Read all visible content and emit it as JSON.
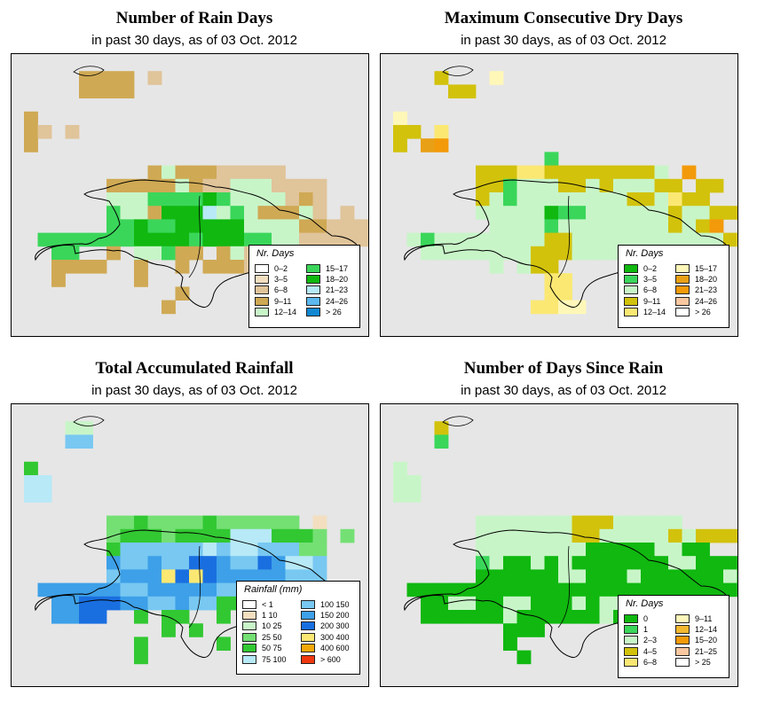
{
  "panels": [
    {
      "id": "rain-days",
      "title": "Number of Rain Days",
      "subtitle": "in past 30 days, as of  03 Oct. 2012",
      "legend": {
        "title": "Nr. Days",
        "items": [
          {
            "label": "0–2",
            "color": "#ffffff"
          },
          {
            "label": "3–5",
            "color": "#f3dfc0"
          },
          {
            "label": "6–8",
            "color": "#e0c49a"
          },
          {
            "label": "9–11",
            "color": "#cfa954"
          },
          {
            "label": "12–14",
            "color": "#c8f5c8"
          },
          {
            "label": "15–17",
            "color": "#3ad65a"
          },
          {
            "label": "18–20",
            "color": "#10b810"
          },
          {
            "label": "21–23",
            "color": "#b7e9f7"
          },
          {
            "label": "24–26",
            "color": "#5cb8ee"
          },
          {
            "label": "> 26",
            "color": "#1188d1"
          }
        ]
      },
      "grid": {
        "cell_codes": [
          "ffffffff",
          "f3dfc0",
          "e0c49a",
          "cfa954",
          "c8f5c8",
          "3ad65a",
          "10b810",
          "b7e9f7",
          "5cb8ee",
          "1188d1"
        ]
      }
    },
    {
      "id": "max-dry",
      "title": "Maximum Consecutive Dry Days",
      "subtitle": "in past 30 days, as of  03 Oct. 2012",
      "legend": {
        "title": "Nr. Days",
        "items": [
          {
            "label": "0–2",
            "color": "#10b810"
          },
          {
            "label": "3–5",
            "color": "#3ad65a"
          },
          {
            "label": "6–8",
            "color": "#c8f5c8"
          },
          {
            "label": "9–11",
            "color": "#d2c20c"
          },
          {
            "label": "12–14",
            "color": "#fbe873"
          },
          {
            "label": "15–17",
            "color": "#fff7b8"
          },
          {
            "label": "18–20",
            "color": "#e8a016"
          },
          {
            "label": "21–23",
            "color": "#f39a0a"
          },
          {
            "label": "24–26",
            "color": "#fac8a0"
          },
          {
            "label": "> 26",
            "color": "#ffffff"
          }
        ]
      }
    },
    {
      "id": "rainfall",
      "title": "Total Accumulated Rainfall",
      "subtitle": "in past 30 days, as of  03 Oct. 2012",
      "legend": {
        "title": "Rainfall (mm)",
        "items": [
          {
            "label": "< 1",
            "color": "#ffffff"
          },
          {
            "label": "1    10",
            "color": "#f3dfc0"
          },
          {
            "label": "10    25",
            "color": "#c8f5c8"
          },
          {
            "label": "25    50",
            "color": "#74e074"
          },
          {
            "label": "50    75",
            "color": "#32c832"
          },
          {
            "label": "75   100",
            "color": "#b7e9f7"
          },
          {
            "label": "100   150",
            "color": "#78c8f2"
          },
          {
            "label": "150   200",
            "color": "#3da0e8"
          },
          {
            "label": "200   300",
            "color": "#1a6fe0"
          },
          {
            "label": "300   400",
            "color": "#fbe873"
          },
          {
            "label": "400   600",
            "color": "#f3a80a"
          },
          {
            "label": "> 600",
            "color": "#f03810"
          }
        ]
      }
    },
    {
      "id": "since-rain",
      "title": "Number of Days Since Rain",
      "subtitle": "in past 30 days, as of  03 Oct. 2012",
      "legend": {
        "title": "Nr. Days",
        "items": [
          {
            "label": "0",
            "color": "#10b810"
          },
          {
            "label": "1",
            "color": "#3ad65a"
          },
          {
            "label": "2–3",
            "color": "#c8f5c8"
          },
          {
            "label": "4–5",
            "color": "#d2c20c"
          },
          {
            "label": "6–8",
            "color": "#fbe873"
          },
          {
            "label": "9–11",
            "color": "#fff7b8"
          },
          {
            "label": "12–14",
            "color": "#f3b830"
          },
          {
            "label": "15–20",
            "color": "#f39a0a"
          },
          {
            "label": "21–25",
            "color": "#fac8a0"
          },
          {
            "label": "> 25",
            "color": "#ffffff"
          }
        ]
      }
    }
  ]
}
